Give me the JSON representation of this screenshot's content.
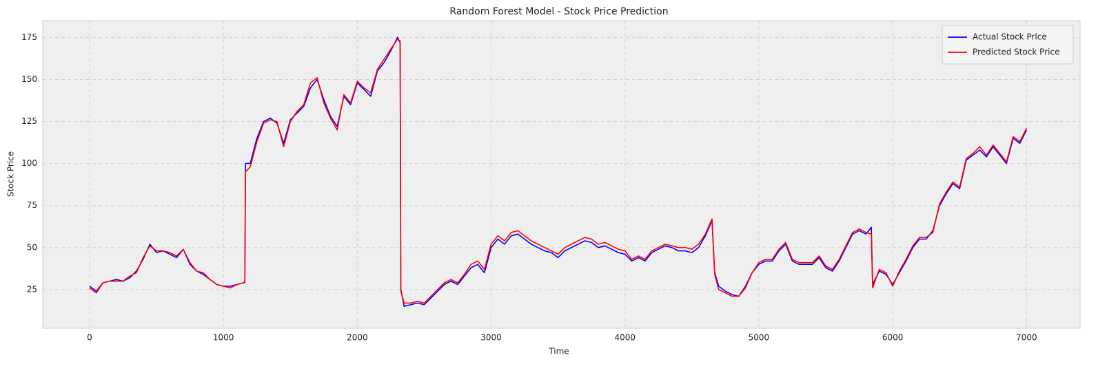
{
  "chart_data": {
    "type": "line",
    "title": "Random Forest Model - Stock Price Prediction",
    "xlabel": "Time",
    "ylabel": "Stock Price",
    "x": [
      0,
      50,
      100,
      150,
      200,
      250,
      300,
      350,
      400,
      450,
      500,
      550,
      600,
      650,
      700,
      750,
      800,
      850,
      900,
      950,
      1000,
      1050,
      1100,
      1150,
      1160,
      1165,
      1200,
      1250,
      1300,
      1350,
      1400,
      1450,
      1500,
      1550,
      1600,
      1650,
      1700,
      1750,
      1800,
      1850,
      1900,
      1950,
      2000,
      2050,
      2100,
      2150,
      2200,
      2250,
      2300,
      2320,
      2325,
      2350,
      2400,
      2450,
      2500,
      2550,
      2600,
      2650,
      2700,
      2750,
      2800,
      2850,
      2900,
      2950,
      3000,
      3050,
      3100,
      3150,
      3200,
      3250,
      3300,
      3350,
      3400,
      3450,
      3500,
      3550,
      3600,
      3650,
      3700,
      3750,
      3800,
      3850,
      3900,
      3950,
      4000,
      4050,
      4100,
      4150,
      4200,
      4250,
      4300,
      4350,
      4400,
      4450,
      4500,
      4550,
      4600,
      4650,
      4670,
      4700,
      4750,
      4800,
      4850,
      4900,
      4950,
      5000,
      5050,
      5100,
      5150,
      5200,
      5250,
      5300,
      5350,
      5400,
      5450,
      5500,
      5550,
      5600,
      5650,
      5700,
      5750,
      5800,
      5840,
      5850,
      5900,
      5950,
      6000,
      6050,
      6100,
      6150,
      6200,
      6250,
      6300,
      6350,
      6400,
      6450,
      6500,
      6550,
      6600,
      6650,
      6700,
      6750,
      6800,
      6850,
      6900,
      6950,
      7000
    ],
    "series": [
      {
        "name": "Actual Stock Price",
        "color": "#0000ff",
        "values": [
          27,
          24,
          29,
          30,
          31,
          30,
          32,
          36,
          43,
          52,
          47,
          48,
          46,
          44,
          49,
          40,
          36,
          34,
          31,
          28,
          27,
          27,
          28,
          29,
          30,
          100,
          100,
          115,
          125,
          127,
          124,
          112,
          126,
          130,
          134,
          145,
          150,
          138,
          128,
          122,
          140,
          135,
          148,
          144,
          140,
          155,
          160,
          167,
          175,
          172,
          25,
          15,
          16,
          17,
          16,
          20,
          24,
          28,
          30,
          28,
          33,
          38,
          40,
          35,
          50,
          55,
          52,
          57,
          58,
          55,
          52,
          50,
          48,
          47,
          44,
          48,
          50,
          52,
          54,
          53,
          50,
          51,
          49,
          47,
          46,
          42,
          44,
          42,
          47,
          49,
          51,
          50,
          48,
          48,
          47,
          50,
          57,
          66,
          35,
          27,
          24,
          22,
          21,
          27,
          35,
          40,
          42,
          42,
          48,
          52,
          42,
          40,
          40,
          40,
          44,
          38,
          36,
          42,
          50,
          58,
          60,
          58,
          62,
          28,
          36,
          34,
          28,
          35,
          42,
          50,
          55,
          55,
          60,
          75,
          82,
          88,
          85,
          102,
          105,
          108,
          104,
          110,
          105,
          100,
          115,
          112,
          120
        ]
      },
      {
        "name": "Predicted Stock Price",
        "color": "#ff0000",
        "values": [
          26,
          23,
          29,
          30,
          30,
          30,
          33,
          35,
          44,
          51,
          48,
          48,
          47,
          45,
          49,
          41,
          36,
          35,
          31,
          28,
          27,
          26,
          28,
          29,
          29,
          95,
          98,
          113,
          124,
          126,
          125,
          110,
          125,
          131,
          135,
          148,
          151,
          136,
          127,
          120,
          141,
          136,
          149,
          145,
          142,
          156,
          162,
          168,
          174,
          173,
          24,
          17,
          17,
          18,
          17,
          21,
          25,
          29,
          31,
          29,
          34,
          40,
          42,
          37,
          52,
          57,
          54,
          59,
          60,
          57,
          54,
          52,
          50,
          48,
          46,
          50,
          52,
          54,
          56,
          55,
          52,
          53,
          51,
          49,
          48,
          43,
          45,
          43,
          48,
          50,
          52,
          51,
          50,
          50,
          49,
          52,
          58,
          67,
          34,
          25,
          23,
          21,
          21,
          26,
          35,
          41,
          43,
          43,
          49,
          53,
          43,
          41,
          41,
          41,
          45,
          39,
          37,
          43,
          51,
          59,
          61,
          59,
          58,
          26,
          37,
          35,
          27,
          36,
          43,
          51,
          56,
          56,
          59,
          76,
          83,
          89,
          86,
          103,
          106,
          110,
          105,
          111,
          106,
          101,
          116,
          113,
          121
        ]
      }
    ],
    "xlim": [
      -350,
      7400
    ],
    "xticks": [
      0,
      1000,
      2000,
      3000,
      4000,
      5000,
      6000,
      7000
    ],
    "ylim": [
      2,
      185
    ],
    "yticks": [
      25,
      50,
      75,
      100,
      125,
      150,
      175
    ],
    "grid": true,
    "legend": "upper right"
  }
}
